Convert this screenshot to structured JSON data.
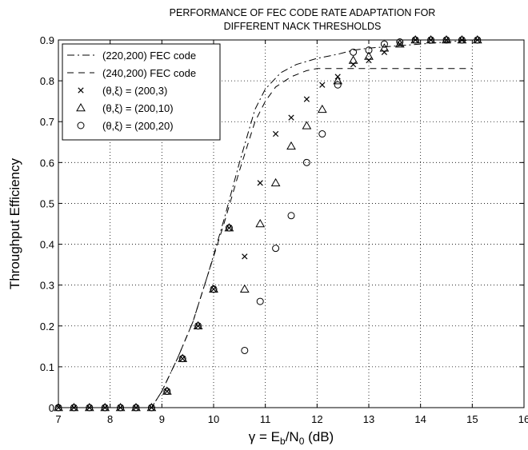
{
  "chart_data": {
    "type": "line",
    "title_lines": [
      "PERFORMANCE OF FEC CODE RATE ADAPTATION FOR",
      "DIFFERENT NACK THRESHOLDS"
    ],
    "xlabel": {
      "pre": "γ = E",
      "sub1": "b",
      "mid": "/N",
      "sub2": "0",
      "post": " (dB)"
    },
    "ylabel": "Throughput Efficiency",
    "xlim": [
      7,
      16
    ],
    "ylim": [
      0,
      0.9
    ],
    "xticks": [
      7,
      8,
      9,
      10,
      11,
      12,
      13,
      14,
      15,
      16
    ],
    "yticks": [
      0,
      0.1,
      0.2,
      0.3,
      0.4,
      0.5,
      0.6,
      0.7,
      0.8,
      0.9
    ],
    "xtick_labels": [
      "7",
      "8",
      "9",
      "10",
      "11",
      "12",
      "13",
      "14",
      "15",
      "16"
    ],
    "ytick_labels": [
      "0",
      "0.1",
      "0.2",
      "0.3",
      "0.4",
      "0.5",
      "0.6",
      "0.7",
      "0.8",
      "0.9"
    ],
    "grid": true,
    "legend_position": "top-left",
    "series": [
      {
        "name": "(220,200) FEC code",
        "style": "dashdot",
        "color": "#000000",
        "x": [
          7.0,
          8.8,
          9.0,
          9.3,
          9.6,
          9.9,
          10.2,
          10.5,
          10.8,
          11.0,
          11.3,
          11.6,
          12.0,
          12.4,
          12.7,
          13.0,
          13.5,
          14.0,
          15.0
        ],
        "y": [
          0.0,
          0.0,
          0.04,
          0.12,
          0.21,
          0.33,
          0.46,
          0.6,
          0.73,
          0.78,
          0.82,
          0.84,
          0.855,
          0.865,
          0.875,
          0.88,
          0.885,
          0.89,
          0.9
        ]
      },
      {
        "name": "(240,200) FEC code",
        "style": "dashed",
        "color": "#000000",
        "x": [
          7.0,
          8.8,
          9.0,
          9.3,
          9.6,
          9.9,
          10.2,
          10.5,
          10.8,
          11.0,
          11.2,
          11.5,
          11.8,
          12.0,
          13.0,
          14.0,
          15.0
        ],
        "y": [
          0.0,
          0.0,
          0.04,
          0.12,
          0.21,
          0.33,
          0.45,
          0.58,
          0.7,
          0.75,
          0.785,
          0.81,
          0.825,
          0.83,
          0.83,
          0.83,
          0.83
        ]
      },
      {
        "name": "(θ,ξ) = (200,3)",
        "style": "marker-x",
        "color": "#000000",
        "x": [
          7.0,
          7.3,
          7.6,
          7.9,
          8.2,
          8.5,
          8.8,
          9.1,
          9.4,
          9.7,
          10.0,
          10.3,
          10.6,
          10.9,
          11.2,
          11.5,
          11.8,
          12.1,
          12.4,
          12.7,
          13.0,
          13.3,
          13.6,
          13.9,
          14.2,
          14.5,
          14.8,
          15.1
        ],
        "y": [
          0.0,
          0.0,
          0.0,
          0.0,
          0.0,
          0.0,
          0.0,
          0.04,
          0.12,
          0.2,
          0.29,
          0.44,
          0.37,
          0.55,
          0.67,
          0.71,
          0.755,
          0.79,
          0.81,
          0.84,
          0.85,
          0.87,
          0.89,
          0.9,
          0.9,
          0.9,
          0.9,
          0.9
        ]
      },
      {
        "name": "(θ,ξ) = (200,10)",
        "style": "marker-triangle",
        "color": "#000000",
        "x": [
          7.0,
          7.3,
          7.6,
          7.9,
          8.2,
          8.5,
          8.8,
          9.1,
          9.4,
          9.7,
          10.0,
          10.3,
          10.6,
          10.9,
          11.2,
          11.5,
          11.8,
          12.1,
          12.4,
          12.7,
          13.0,
          13.3,
          13.6,
          13.9,
          14.2,
          14.5,
          14.8,
          15.1
        ],
        "y": [
          0.0,
          0.0,
          0.0,
          0.0,
          0.0,
          0.0,
          0.0,
          0.04,
          0.12,
          0.2,
          0.29,
          0.44,
          0.29,
          0.45,
          0.55,
          0.64,
          0.69,
          0.73,
          0.8,
          0.85,
          0.86,
          0.88,
          0.89,
          0.9,
          0.9,
          0.9,
          0.9,
          0.9
        ]
      },
      {
        "name": "(θ,ξ) = (200,20)",
        "style": "marker-circle",
        "color": "#000000",
        "x": [
          7.0,
          7.3,
          7.6,
          7.9,
          8.2,
          8.5,
          8.8,
          9.1,
          9.4,
          9.7,
          10.0,
          10.3,
          10.6,
          10.9,
          11.2,
          11.5,
          11.8,
          12.1,
          12.4,
          12.7,
          13.0,
          13.3,
          13.6,
          13.9,
          14.2,
          14.5,
          14.8,
          15.1
        ],
        "y": [
          0.0,
          0.0,
          0.0,
          0.0,
          0.0,
          0.0,
          0.0,
          0.04,
          0.12,
          0.2,
          0.29,
          0.44,
          0.14,
          0.26,
          0.39,
          0.47,
          0.6,
          0.67,
          0.79,
          0.87,
          0.875,
          0.89,
          0.895,
          0.9,
          0.9,
          0.9,
          0.9,
          0.9
        ]
      }
    ]
  }
}
